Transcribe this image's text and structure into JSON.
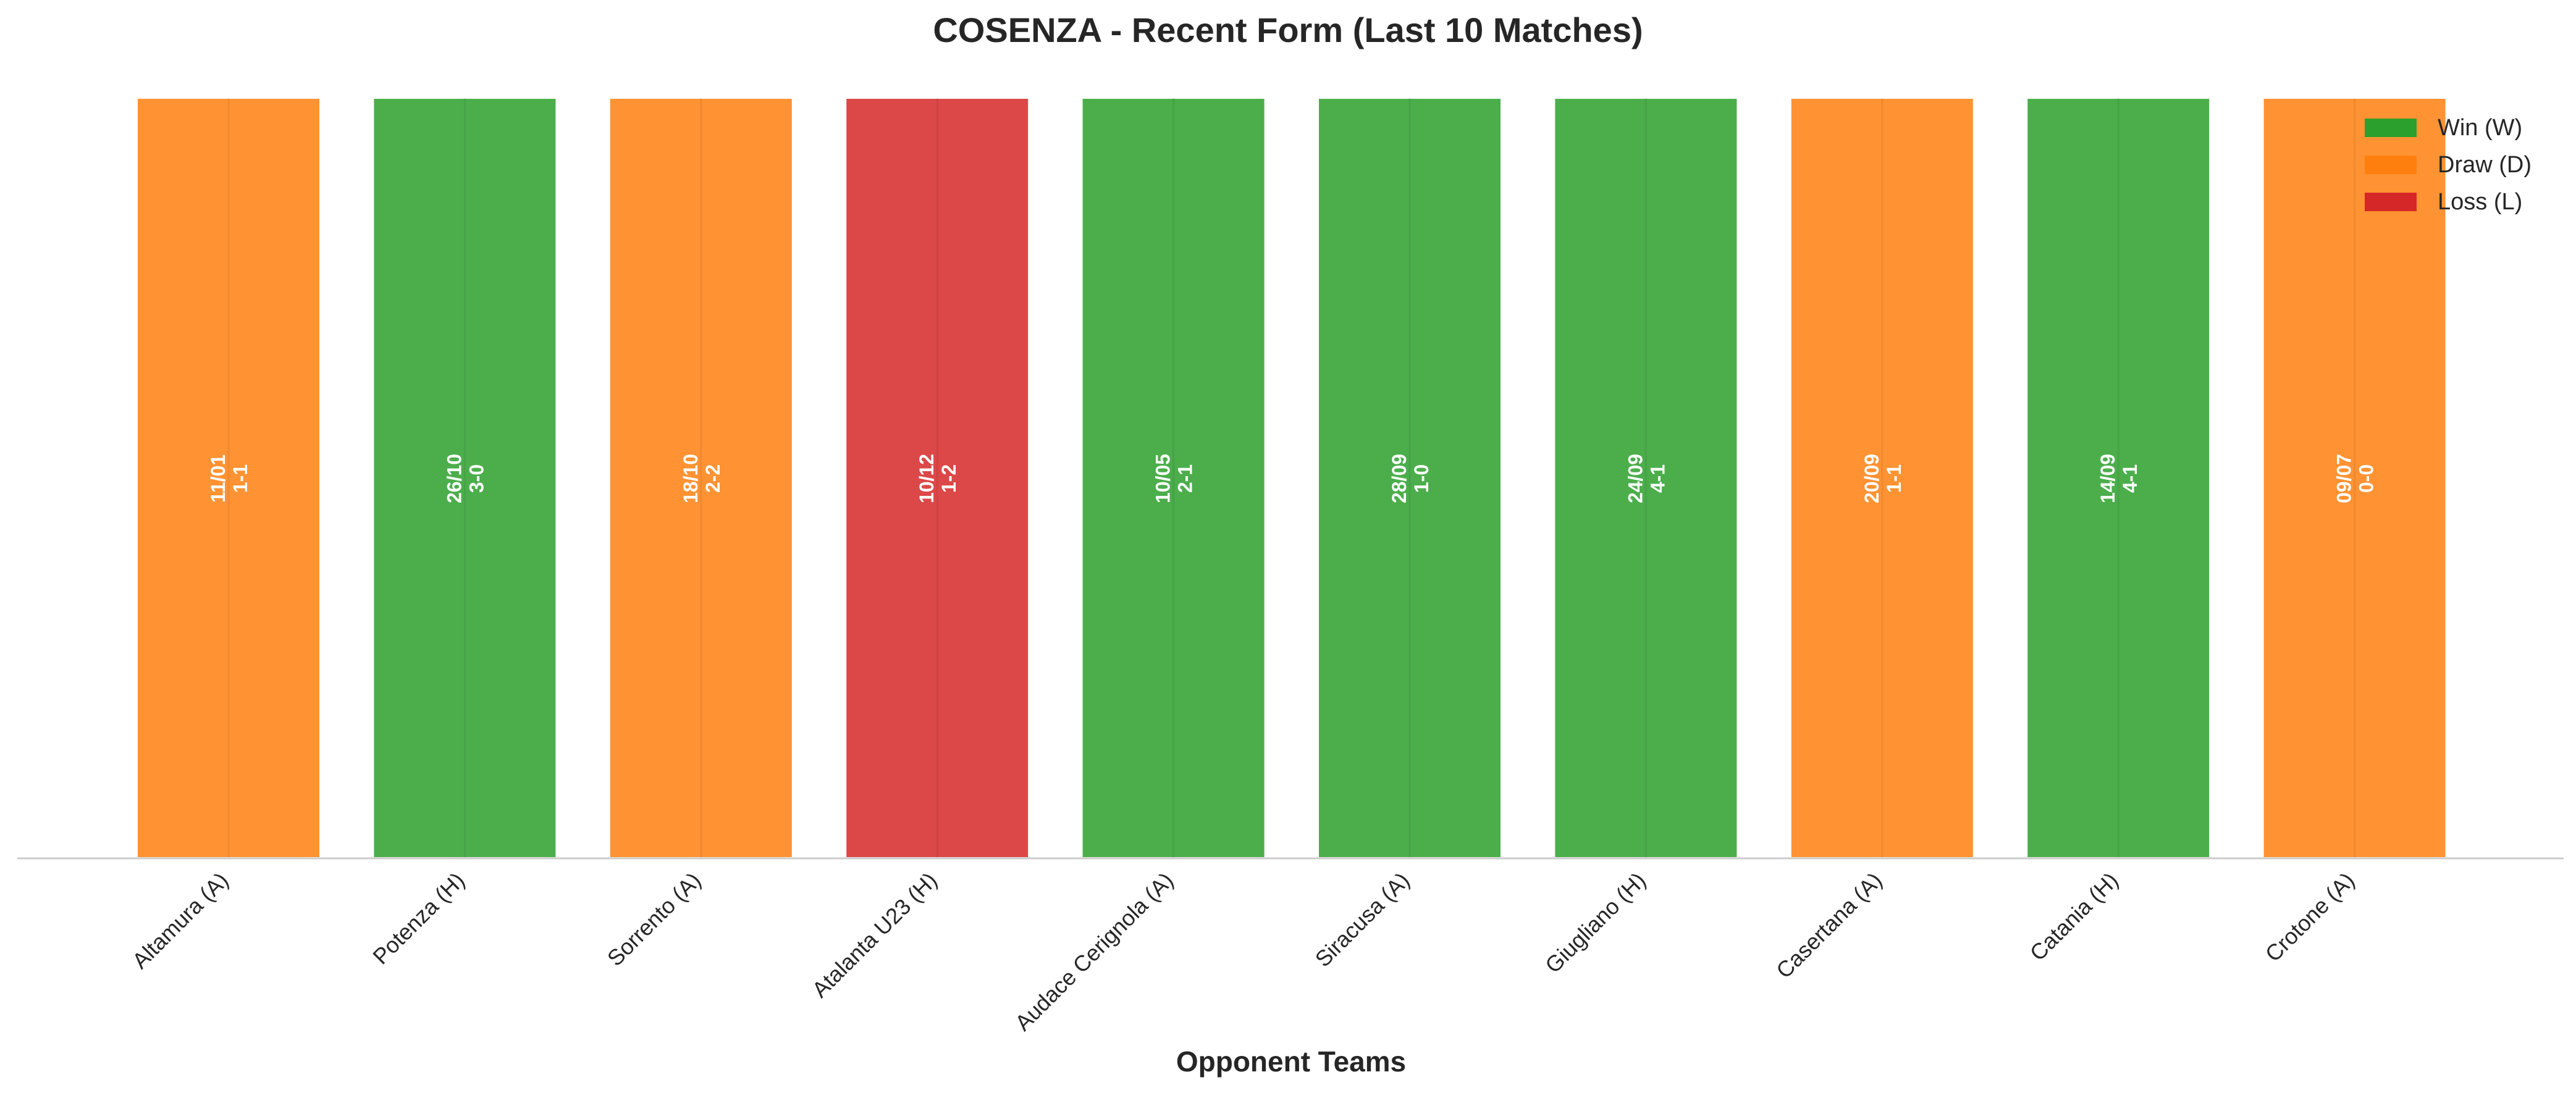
{
  "chart_data": {
    "type": "bar",
    "title": "COSENZA - Recent Form (Last 10 Matches)",
    "xlabel": "Opponent Teams",
    "ylabel": "",
    "categories": [
      "Altamura (A)",
      "Potenza (H)",
      "Sorrento (A)",
      "Atalanta U23 (H)",
      "Audace Cerignola (A)",
      "Siracusa (A)",
      "Giugliano (H)",
      "Casertana (A)",
      "Catania (H)",
      "Crotone (A)"
    ],
    "values": [
      1,
      1,
      1,
      1,
      1,
      1,
      1,
      1,
      1,
      1
    ],
    "results": [
      "D",
      "W",
      "D",
      "L",
      "W",
      "W",
      "W",
      "D",
      "W",
      "D"
    ],
    "dates": [
      "11/01",
      "26/10",
      "18/10",
      "10/12",
      "10/05",
      "28/09",
      "24/09",
      "20/09",
      "14/09",
      "09/07"
    ],
    "scores": [
      "1-1",
      "3-0",
      "2-2",
      "1-2",
      "2-1",
      "1-0",
      "4-1",
      "1-1",
      "4-1",
      "0-0"
    ],
    "colors": {
      "W": "#2ca02c",
      "D": "#ff7f0e",
      "L": "#d62728"
    },
    "legend": {
      "placement": "top-right",
      "entries": [
        {
          "key": "W",
          "label": "Win (W)"
        },
        {
          "key": "D",
          "label": "Draw (D)"
        },
        {
          "key": "L",
          "label": "Loss (L)"
        }
      ]
    },
    "ylim": [
      0,
      1
    ],
    "grid": false
  }
}
